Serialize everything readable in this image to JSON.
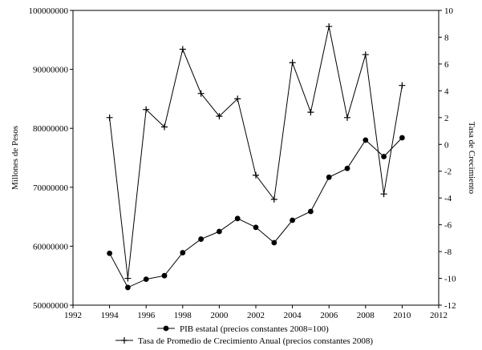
{
  "chart_data": {
    "type": "line",
    "x_axis": {
      "range": [
        1992,
        2012
      ],
      "ticks": [
        1992,
        1994,
        1996,
        1998,
        2000,
        2002,
        2004,
        2006,
        2008,
        2010,
        2012
      ]
    },
    "y_left": {
      "label": "Millones de Pesos",
      "range": [
        50000000,
        100000000
      ],
      "ticks": [
        50000000,
        60000000,
        70000000,
        80000000,
        90000000,
        100000000
      ]
    },
    "y_right": {
      "label": "Tasa de Crecimiento",
      "range": [
        -12,
        10
      ],
      "ticks": [
        -12,
        -10,
        -8,
        -6,
        -4,
        -2,
        0,
        2,
        4,
        6,
        8,
        10
      ]
    },
    "grid": false,
    "legend_position": "bottom",
    "series": [
      {
        "name": "PIB estatal (precios constantes 2008=100)",
        "axis": "left",
        "marker": "circle",
        "x": [
          1994,
          1995,
          1996,
          1997,
          1998,
          1999,
          2000,
          2001,
          2002,
          2003,
          2004,
          2005,
          2006,
          2007,
          2008,
          2009,
          2010
        ],
        "y": [
          58800000,
          53000000,
          54400000,
          55000000,
          58900000,
          61200000,
          62500000,
          64700000,
          63200000,
          60600000,
          64400000,
          65900000,
          71700000,
          73200000,
          78000000,
          75200000,
          78400000
        ]
      },
      {
        "name": "Tasa de Promedio de Crecimiento Anual (precios constantes 2008)",
        "axis": "right",
        "marker": "plus",
        "x": [
          1994,
          1995,
          1996,
          1997,
          1998,
          1999,
          2000,
          2001,
          2002,
          2003,
          2004,
          2005,
          2006,
          2007,
          2008,
          2009,
          2010
        ],
        "y": [
          2.0,
          -10.0,
          2.6,
          1.3,
          7.1,
          3.8,
          2.1,
          3.4,
          -2.3,
          -4.1,
          6.1,
          2.4,
          8.8,
          2.0,
          6.7,
          -3.7,
          4.4
        ]
      }
    ]
  }
}
